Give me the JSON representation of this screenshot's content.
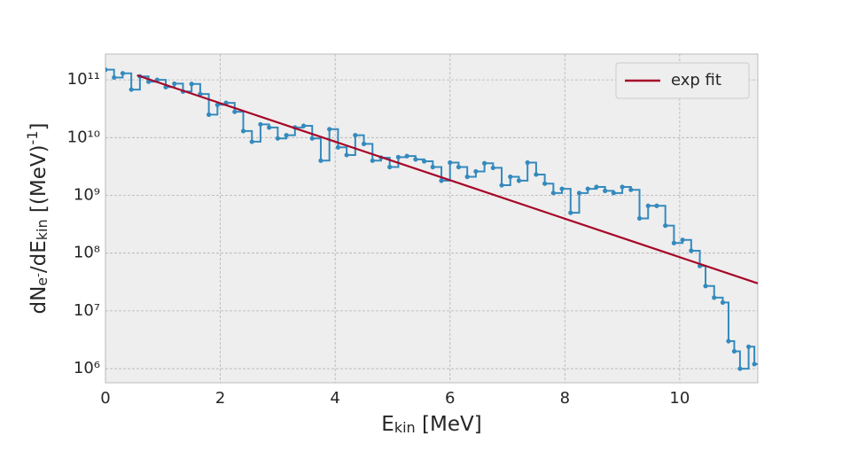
{
  "chart_data": {
    "type": "line",
    "xlabel": [
      {
        "text": "E"
      },
      {
        "text": "kin",
        "shift": "sub"
      },
      {
        "text": " [MeV]"
      }
    ],
    "ylabel": [
      {
        "text": "dN"
      },
      {
        "text": "e",
        "shift": "sub"
      },
      {
        "text": "-",
        "shift": "subsup"
      },
      {
        "text": "/dE"
      },
      {
        "text": "kin",
        "shift": "sub"
      },
      {
        "text": "  [(MeV)"
      },
      {
        "text": "-1",
        "shift": "sup"
      },
      {
        "text": "]"
      }
    ],
    "xlim": [
      0,
      11.36
    ],
    "xticks": [
      0,
      2,
      4,
      6,
      8,
      10
    ],
    "ylim": [
      570000,
      280000000000
    ],
    "log_y": true,
    "yticks": [
      {
        "value": 1000000,
        "label": "10⁶"
      },
      {
        "value": 10000000,
        "label": "10⁷"
      },
      {
        "value": 100000000,
        "label": "10⁸"
      },
      {
        "value": 1000000000,
        "label": "10⁹"
      },
      {
        "value": 10000000000,
        "label": "10¹⁰"
      },
      {
        "value": 100000000000,
        "label": "10¹¹"
      }
    ],
    "grid": true,
    "legend": "upper right",
    "series": [
      {
        "color": "#348abd",
        "drawstyle": "steps",
        "markers": true,
        "x": [
          0,
          0.15,
          0.3,
          0.45,
          0.6,
          0.75,
          0.9,
          1.05,
          1.2,
          1.35,
          1.5,
          1.65,
          1.8,
          1.95,
          2.1,
          2.25,
          2.4,
          2.55,
          2.7,
          2.85,
          3.0,
          3.15,
          3.3,
          3.45,
          3.6,
          3.75,
          3.9,
          4.05,
          4.2,
          4.35,
          4.5,
          4.65,
          4.8,
          4.95,
          5.1,
          5.25,
          5.4,
          5.55,
          5.7,
          5.85,
          6.0,
          6.15,
          6.3,
          6.45,
          6.6,
          6.75,
          6.9,
          7.05,
          7.2,
          7.35,
          7.5,
          7.65,
          7.8,
          7.95,
          8.1,
          8.25,
          8.4,
          8.55,
          8.7,
          8.85,
          9.0,
          9.15,
          9.3,
          9.45,
          9.6,
          9.75,
          9.9,
          10.05,
          10.2,
          10.35,
          10.45,
          10.6,
          10.75,
          10.85,
          10.95,
          11.05,
          11.2,
          11.3
        ],
        "values": [
          150000000000,
          110000000000,
          130000000000,
          68000000000,
          115000000000,
          93000000000,
          100000000000,
          75000000000,
          86000000000,
          63000000000,
          85000000000,
          57000000000,
          25000000000,
          37000000000,
          40000000000,
          28000000000,
          13000000000,
          8500000000,
          17000000000,
          15000000000,
          9700000000,
          11000000000,
          15000000000,
          16000000000,
          9700000000,
          4000000000,
          14000000000,
          6800000000,
          5000000000,
          11000000000,
          7800000000,
          4000000000,
          4500000000,
          3100000000,
          4600000000,
          4800000000,
          4200000000,
          3900000000,
          3100000000,
          1800000000,
          3700000000,
          3100000000,
          2100000000,
          2600000000,
          3600000000,
          3000000000,
          1500000000,
          2100000000,
          1800000000,
          3700000000,
          2300000000,
          1600000000,
          1100000000,
          1300000000,
          500000000,
          1100000000,
          1300000000,
          1400000000,
          1200000000,
          1100000000,
          1400000000,
          1250000000,
          400000000,
          660000000,
          660000000,
          300000000,
          150000000,
          170000000,
          110000000,
          60000000,
          27000000,
          17000000,
          14000000,
          3000000,
          2000000,
          1000000,
          2400000,
          1200000
        ]
      },
      {
        "name": "exp fit",
        "color": "#a60628",
        "x": [
          0.55,
          11.36
        ],
        "values": [
          120000000000,
          30000000
        ]
      }
    ]
  }
}
